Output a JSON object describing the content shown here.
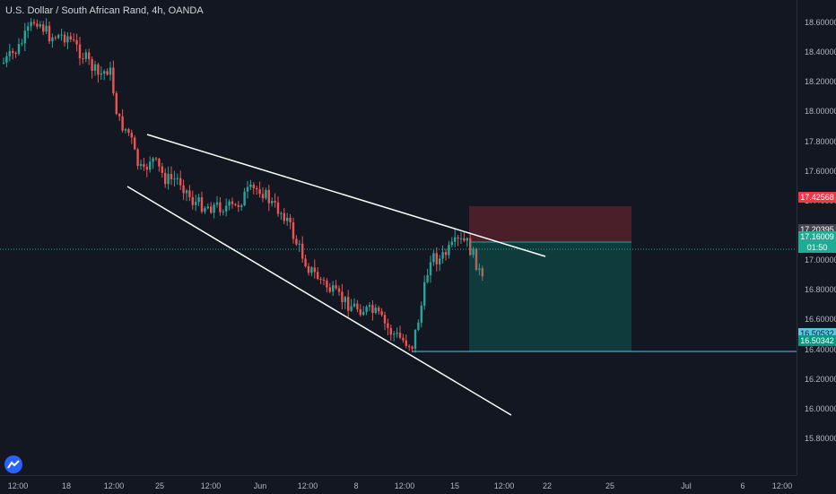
{
  "header": {
    "title": "U.S. Dollar / South African Rand, 4h, OANDA"
  },
  "price_axis": {
    "ticks": [
      "18.60000",
      "18.40000",
      "18.20000",
      "18.00000",
      "17.80000",
      "17.60000",
      "17.40000",
      "17.20000",
      "17.00000",
      "16.80000",
      "16.60000",
      "16.40000",
      "16.20000",
      "16.00000",
      "15.80000"
    ],
    "labels": [
      {
        "name": "stop-loss-price-label",
        "text": "17.42568",
        "color": "#f23645",
        "value": 17.42568
      },
      {
        "name": "current-price-label",
        "text": "17.20395",
        "color": "#434651",
        "value": 17.20395
      },
      {
        "name": "entry-price-label",
        "text": "17.16009",
        "color": "#22ab94",
        "value": 17.16009
      },
      {
        "name": "countdown-label",
        "text": "01:50",
        "color": "#22ab94",
        "value": 17.085
      },
      {
        "name": "level-line-price-label",
        "text": "16.50532",
        "color": "#5fc3e4",
        "value": 16.50532
      },
      {
        "name": "take-profit-price-label",
        "text": "16.50342",
        "color": "#089981",
        "value": 16.455
      }
    ]
  },
  "time_axis": {
    "ticks": [
      "12:00",
      "18",
      "12:00",
      "25",
      "12:00",
      "Jun",
      "12:00",
      "8",
      "12:00",
      "15",
      "12:00",
      "22",
      "25",
      "Jul",
      "6",
      "12:00"
    ]
  },
  "colors": {
    "background": "#131722",
    "up": "#26a69a",
    "down": "#ef5350",
    "trendline": "#ffffff",
    "stop_zone": "rgba(242,54,69,0.25)",
    "target_zone": "rgba(8,153,129,0.28)",
    "level_line": "#5fc3e4"
  },
  "icons": {
    "logo": "tradingview-logo-icon"
  }
}
